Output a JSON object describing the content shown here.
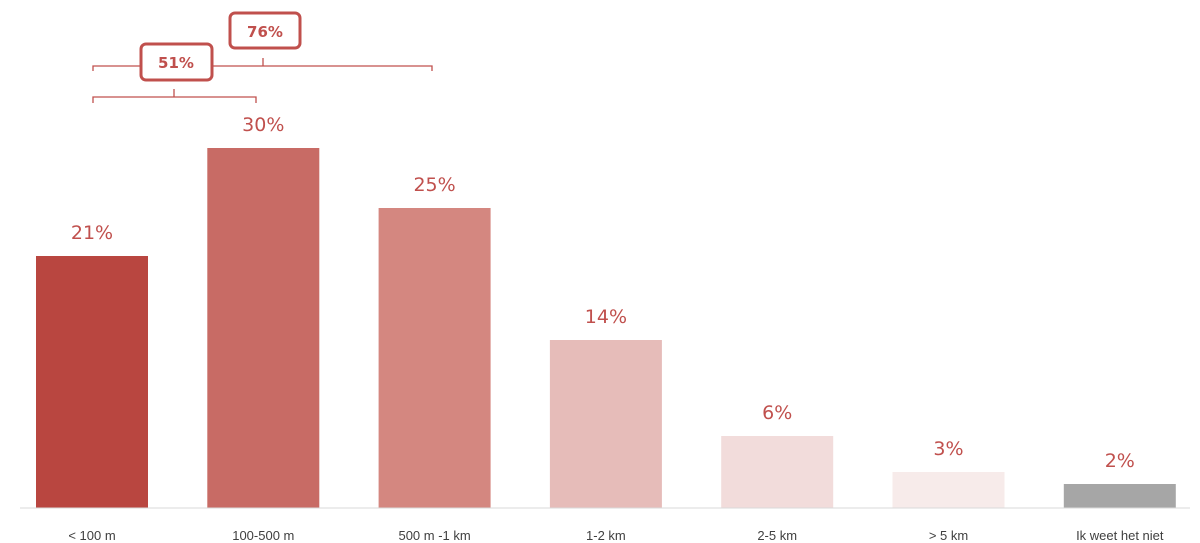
{
  "chart_data": {
    "type": "bar",
    "categories": [
      "< 100 m",
      "100-500 m",
      "500 m -1 km",
      "1-2 km",
      "2-5 km",
      "> 5 km",
      "Ik weet het niet"
    ],
    "values": [
      21,
      30,
      25,
      14,
      6,
      3,
      2
    ],
    "value_labels": [
      "21%",
      "30%",
      "25%",
      "14%",
      "6%",
      "3%",
      "2%"
    ],
    "colors": [
      "#b94640",
      "#c86b65",
      "#d48780",
      "#e6bcb9",
      "#f2dcdb",
      "#f7ebea",
      "#a6a6a6"
    ],
    "label_color": "#c0504d",
    "ylim": [
      0,
      30
    ],
    "grid": false,
    "legend": "none",
    "annotations": [
      {
        "label": "51%",
        "spans": [
          "< 100 m",
          "100-500 m"
        ]
      },
      {
        "label": "76%",
        "spans": [
          "< 100 m",
          "500 m -1 km"
        ]
      }
    ]
  }
}
